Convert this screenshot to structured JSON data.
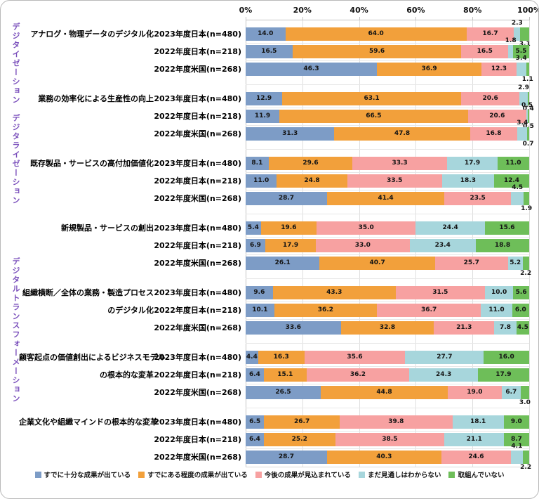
{
  "chart_data": {
    "type": "bar",
    "variant": "horizontal_stacked_100pct",
    "title": "",
    "xlabel": "",
    "ylabel": "",
    "x_axis_ticks": [
      "0%",
      "20%",
      "40%",
      "60%",
      "80%",
      "100%"
    ],
    "x_range": [
      0,
      100
    ],
    "grid": true,
    "legend_position": "bottom",
    "series_names": [
      "すでに十分な成果が出ている",
      "すでにある程度の成果が出ている",
      "今後の成果が見込まれている",
      "まだ見通しはわからない",
      "取組んでいない"
    ],
    "series_colors": [
      "#7d9cc6",
      "#f2a03b",
      "#f7a1a1",
      "#a7d6dc",
      "#6ebe59"
    ],
    "section_color": "#7a4fbb",
    "sections": [
      {
        "label": "デジタイゼーション"
      },
      {
        "label": "デジタライゼーション"
      },
      {
        "label": "デジタルトランスフォーメーション"
      }
    ],
    "groups": [
      {
        "section": 0,
        "category": [
          "アナログ・物理データのデジタル化"
        ],
        "rows": [
          {
            "label": "2023年度日本(n=480)",
            "values": [
              14.0,
              64.0,
              16.7,
              2.3,
              3.1
            ]
          },
          {
            "label": "2022年度日本(n=218)",
            "values": [
              16.5,
              59.6,
              16.5,
              1.8,
              5.5
            ]
          },
          {
            "label": "2022年度米国(n=268)",
            "values": [
              46.3,
              36.9,
              12.3,
              3.4,
              1.1
            ]
          }
        ]
      },
      {
        "section": 1,
        "category": [
          "業務の効率化による生産性の向上"
        ],
        "rows": [
          {
            "label": "2023年度日本(n=480)",
            "values": [
              12.9,
              63.1,
              20.6,
              2.9,
              0.4
            ]
          },
          {
            "label": "2022年度日本(n=218)",
            "values": [
              11.9,
              66.5,
              20.6,
              0.5,
              0.5
            ]
          },
          {
            "label": "2022年度米国(n=268)",
            "values": [
              31.3,
              47.8,
              16.8,
              3.4,
              0.7
            ]
          }
        ]
      },
      {
        "section": 1,
        "category": [
          "既存製品・サービスの高付加価値化"
        ],
        "rows": [
          {
            "label": "2023年度日本(n=480)",
            "values": [
              8.1,
              29.6,
              33.3,
              17.9,
              11.0
            ]
          },
          {
            "label": "2022年度日本(n=218)",
            "values": [
              11.0,
              24.8,
              33.5,
              18.3,
              12.4
            ]
          },
          {
            "label": "2022年度米国(n=268)",
            "values": [
              28.7,
              41.4,
              23.5,
              4.5,
              1.9
            ]
          }
        ]
      },
      {
        "section": 2,
        "category": [
          "新規製品・サービスの創出"
        ],
        "rows": [
          {
            "label": "2023年度日本(n=480)",
            "values": [
              5.4,
              19.6,
              35.0,
              24.4,
              15.6
            ]
          },
          {
            "label": "2022年度日本(n=218)",
            "values": [
              6.9,
              17.9,
              33.0,
              23.4,
              18.8
            ]
          },
          {
            "label": "2022年度米国(n=268)",
            "values": [
              26.1,
              40.7,
              25.7,
              5.2,
              2.2
            ]
          }
        ]
      },
      {
        "section": 2,
        "category": [
          "組織横断／全体の業務・製造プロセス",
          "のデジタル化"
        ],
        "rows": [
          {
            "label": "2023年度日本(n=480)",
            "values": [
              9.6,
              43.3,
              31.5,
              10.0,
              5.6
            ]
          },
          {
            "label": "2022年度日本(n=218)",
            "values": [
              10.1,
              36.2,
              36.7,
              11.0,
              6.0
            ]
          },
          {
            "label": "2022年度米国(n=268)",
            "values": [
              33.6,
              32.8,
              21.3,
              7.8,
              4.5
            ]
          }
        ]
      },
      {
        "section": 2,
        "category": [
          "顧客起点の価値創出によるビジネスモデル",
          "の根本的な変革"
        ],
        "rows": [
          {
            "label": "2023年度日本(n=480)",
            "values": [
              4.4,
              16.3,
              35.6,
              27.7,
              16.0
            ]
          },
          {
            "label": "2022年度日本(n=218)",
            "values": [
              6.4,
              15.1,
              36.2,
              24.3,
              17.9
            ]
          },
          {
            "label": "2022年度米国(n=268)",
            "values": [
              26.5,
              44.8,
              19.0,
              6.7,
              3.0
            ]
          }
        ]
      },
      {
        "section": 2,
        "category": [
          "企業文化や組織マインドの根本的な変革"
        ],
        "rows": [
          {
            "label": "2023年度日本(n=480)",
            "values": [
              6.5,
              26.7,
              39.8,
              18.1,
              9.0
            ]
          },
          {
            "label": "2022年度日本(n=218)",
            "values": [
              6.4,
              25.2,
              38.5,
              21.1,
              8.7
            ]
          },
          {
            "label": "2022年度米国(n=268)",
            "values": [
              28.7,
              40.3,
              24.6,
              4.1,
              2.2
            ]
          }
        ]
      }
    ]
  }
}
